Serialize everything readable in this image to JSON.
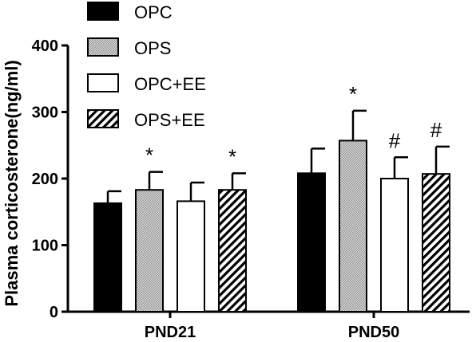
{
  "chart_data": {
    "type": "bar",
    "ylabel": "Plasma corticosterone(ng/ml)",
    "xlabel": "",
    "ylim": [
      0,
      400
    ],
    "yticks": [
      0,
      100,
      200,
      300,
      400
    ],
    "categories": [
      "PND21",
      "PND50"
    ],
    "series": [
      {
        "name": "OPC",
        "fill": "solid",
        "color": "#000000",
        "values": [
          163,
          208
        ],
        "errors": [
          18,
          37
        ],
        "annotations": [
          "",
          ""
        ]
      },
      {
        "name": "OPS",
        "fill": "checker",
        "color": "#bdbdbd",
        "values": [
          183,
          257
        ],
        "errors": [
          27,
          45
        ],
        "annotations": [
          "*",
          "*"
        ]
      },
      {
        "name": "OPC+EE",
        "fill": "empty",
        "color": "#ffffff",
        "values": [
          166,
          200
        ],
        "errors": [
          28,
          32
        ],
        "annotations": [
          "",
          "#"
        ]
      },
      {
        "name": "OPS+EE",
        "fill": "hatch",
        "color": "#000000",
        "values": [
          183,
          207
        ],
        "errors": [
          25,
          41
        ],
        "annotations": [
          "*",
          "#"
        ]
      }
    ],
    "grid": false,
    "legend_position": "top-left"
  }
}
